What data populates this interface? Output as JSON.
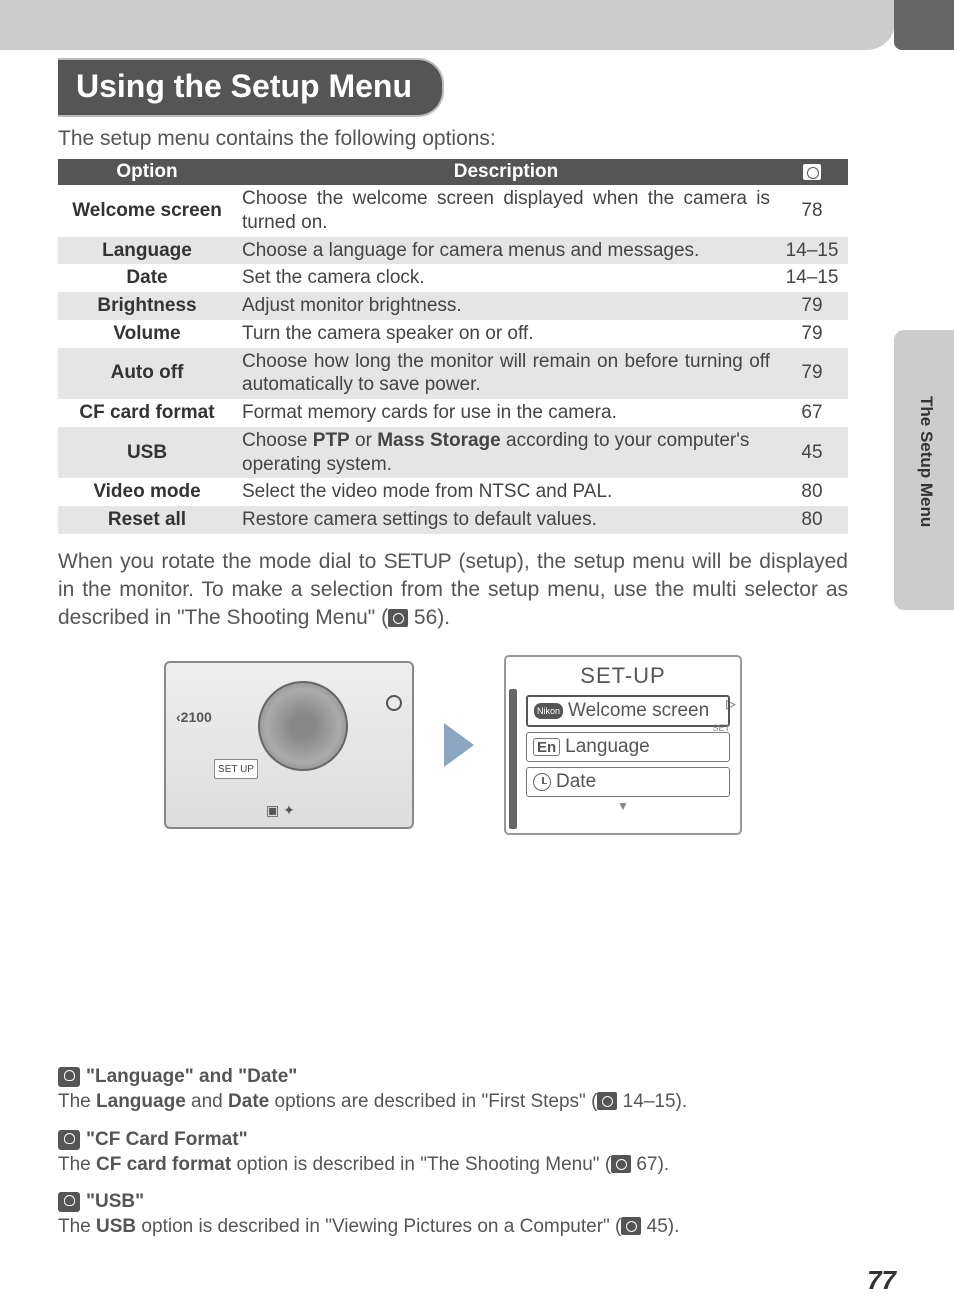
{
  "page": {
    "title": "Using the Setup Menu",
    "intro": "The setup menu contains the following options:",
    "side_tab": "The Setup Menu",
    "page_number": "77"
  },
  "table": {
    "headers": {
      "option": "Option",
      "description": "Description"
    },
    "rows": [
      {
        "name": "Welcome screen",
        "desc": "Choose the welcome screen displayed when the camera is turned on.",
        "page": "78",
        "alt": false
      },
      {
        "name": "Language",
        "desc": "Choose a language for camera menus and messages.",
        "page": "14–15",
        "alt": true
      },
      {
        "name": "Date",
        "desc": "Set the camera clock.",
        "page": "14–15",
        "alt": false
      },
      {
        "name": "Brightness",
        "desc": "Adjust monitor brightness.",
        "page": "79",
        "alt": true
      },
      {
        "name": "Volume",
        "desc": "Turn the camera speaker on or off.",
        "page": "79",
        "alt": false
      },
      {
        "name": "Auto off",
        "desc": "Choose how long the monitor will remain on before turning off automatically to save power.",
        "page": "79",
        "alt": true
      },
      {
        "name": "CF card format",
        "desc": "Format memory cards for use in the camera.",
        "page": "67",
        "alt": false
      },
      {
        "name": "USB",
        "desc_pre": "Choose ",
        "b1": "PTP",
        "mid": " or ",
        "b2": "Mass Storage",
        "desc_post": " according to your computer's operating system.",
        "page": "45",
        "alt": true
      },
      {
        "name": "Video mode",
        "desc": "Select the video mode from NTSC and PAL.",
        "page": "80",
        "alt": false
      },
      {
        "name": "Reset all",
        "desc": "Restore camera settings to default values.",
        "page": "80",
        "alt": true
      }
    ]
  },
  "body": {
    "p1a": "When you rotate the mode dial to ",
    "setup": "SETUP",
    "p1b": " (setup), the setup menu will be displayed in the monitor.  To make a selection from the setup menu, use the multi selector as described in \"The Shooting Menu\" (",
    "p1_ref": " 56)."
  },
  "camera": {
    "model": "‹2100",
    "dial_label": "SET UP"
  },
  "lcd": {
    "title": "SET-UP",
    "items": [
      {
        "icon_text": "Nikon",
        "label": "Welcome screen",
        "set_badge": "SET"
      },
      {
        "icon_text": "En",
        "label": "Language"
      },
      {
        "icon_text": "",
        "label": "Date"
      }
    ]
  },
  "notes": [
    {
      "title": "\"Language\" and \"Date\"",
      "pre": "The ",
      "b1": "Language",
      "mid": " and ",
      "b2": "Date",
      "post": " options are described in \"First Steps\" (",
      "ref": " 14–15)."
    },
    {
      "title": "\"CF Card Format\"",
      "pre": "The ",
      "b1": "CF card format",
      "mid": "",
      "b2": "",
      "post": " option is described in \"The Shooting Menu\" (",
      "ref": " 67)."
    },
    {
      "title": "\"USB\"",
      "pre": "The ",
      "b1": "USB",
      "mid": "",
      "b2": "",
      "post": " option is described in \"Viewing Pictures on a Computer\" (",
      "ref": " 45)."
    }
  ],
  "colors": {
    "header_gray": "#555555",
    "light_gray": "#cccccc",
    "row_alt": "#e5e5e5",
    "text": "#444444",
    "arrow": "#8aa6c1"
  }
}
